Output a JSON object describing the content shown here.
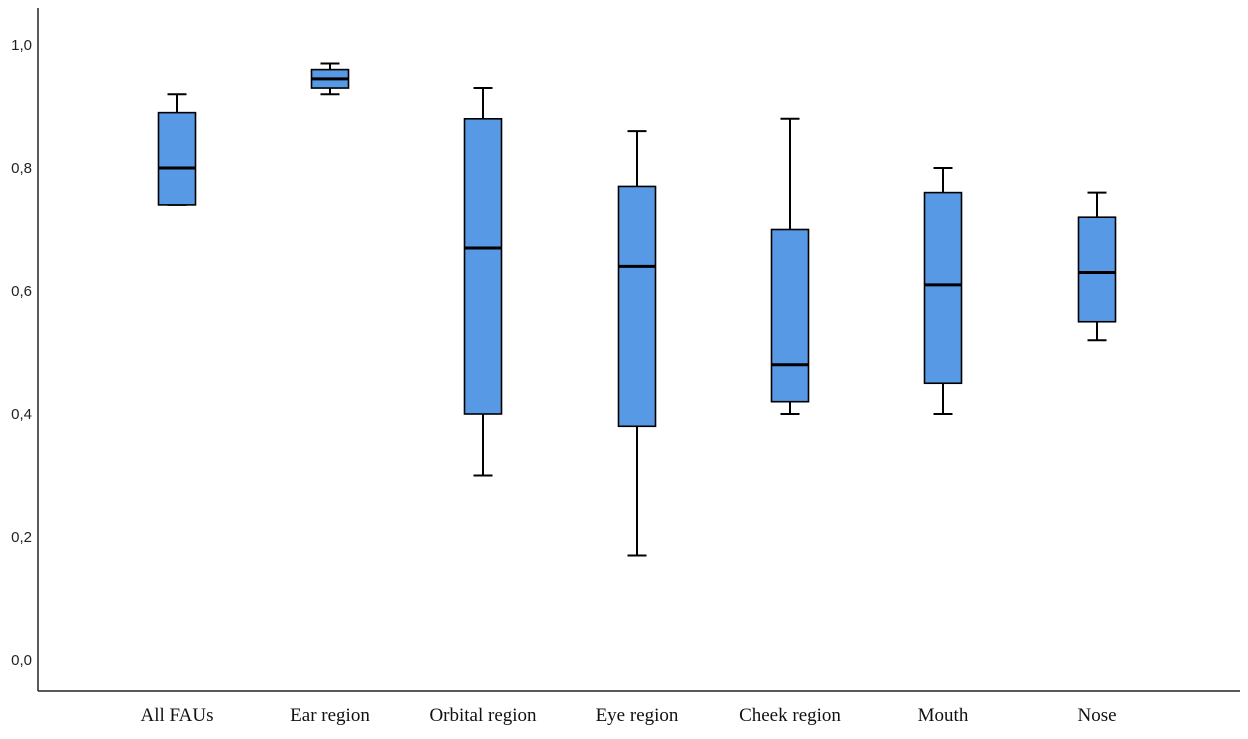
{
  "chart_data": {
    "type": "boxplot",
    "title": "",
    "xlabel": "",
    "ylabel": "",
    "ylim": [
      0.0,
      1.0
    ],
    "y_ticks": [
      0.0,
      0.2,
      0.4,
      0.6,
      0.8,
      1.0
    ],
    "y_tick_labels": [
      "0,0",
      "0,2",
      "0,4",
      "0,6",
      "0,8",
      "1,0"
    ],
    "grid": false,
    "legend": "none",
    "box_color": "#5799e5",
    "line_color": "#000000",
    "categories": [
      "All FAUs",
      "Ear region",
      "Orbital region",
      "Eye region",
      "Cheek region",
      "Mouth",
      "Nose"
    ],
    "boxes": [
      {
        "category": "All FAUs",
        "min": 0.74,
        "q1": 0.74,
        "median": 0.8,
        "q3": 0.89,
        "max": 0.92
      },
      {
        "category": "Ear region",
        "min": 0.92,
        "q1": 0.93,
        "median": 0.945,
        "q3": 0.96,
        "max": 0.97
      },
      {
        "category": "Orbital region",
        "min": 0.3,
        "q1": 0.4,
        "median": 0.67,
        "q3": 0.88,
        "max": 0.93
      },
      {
        "category": "Eye region",
        "min": 0.17,
        "q1": 0.38,
        "median": 0.64,
        "q3": 0.77,
        "max": 0.86
      },
      {
        "category": "Cheek region",
        "min": 0.4,
        "q1": 0.42,
        "median": 0.48,
        "q3": 0.7,
        "max": 0.88
      },
      {
        "category": "Mouth",
        "min": 0.4,
        "q1": 0.45,
        "median": 0.61,
        "q3": 0.76,
        "max": 0.8
      },
      {
        "category": "Nose",
        "min": 0.52,
        "q1": 0.55,
        "median": 0.63,
        "q3": 0.72,
        "max": 0.76
      }
    ]
  }
}
